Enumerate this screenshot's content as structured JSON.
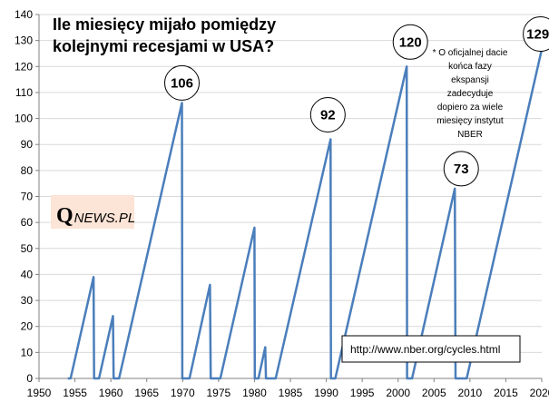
{
  "chart_data": {
    "type": "line",
    "title_lines": [
      "Ile miesięcy mijało pomiędzy",
      "kolejnymi recesjami w USA?"
    ],
    "xlabel": "",
    "ylabel": "",
    "xlim": [
      1950,
      2020
    ],
    "ylim": [
      0,
      140
    ],
    "x_ticks": [
      "1950",
      "1955",
      "1960",
      "1965",
      "1970",
      "1975",
      "1980",
      "1985",
      "1990",
      "1995",
      "2000",
      "2005",
      "2010",
      "2015",
      "2020"
    ],
    "y_ticks": [
      "0",
      "10",
      "20",
      "30",
      "40",
      "50",
      "60",
      "70",
      "80",
      "90",
      "100",
      "110",
      "120",
      "130",
      "140"
    ],
    "grid": "horizontal",
    "legend": "none",
    "series": [
      {
        "color": "#4a7ebb",
        "x": [
          1954.0,
          1954.4,
          1957.6,
          1957.67,
          1958.3,
          1958.35,
          1960.3,
          1960.38,
          1961.1,
          1961.15,
          1969.9,
          1969.95,
          1970.9,
          1970.95,
          1973.8,
          1973.9,
          1975.2,
          1975.25,
          1980.0,
          1980.05,
          1980.5,
          1980.55,
          1981.5,
          1981.6,
          1982.9,
          1982.95,
          1990.6,
          1990.65,
          1991.2,
          1991.25,
          2001.2,
          2001.25,
          2001.9,
          2001.95,
          2007.9,
          2008.0,
          2009.5,
          2009.55,
          2020.2
        ],
        "y": [
          0,
          0,
          39,
          0,
          0,
          0,
          24,
          0,
          0,
          0,
          106,
          0,
          0,
          0,
          36,
          0,
          0,
          0,
          58,
          0,
          0,
          0,
          12,
          0,
          0,
          0,
          92,
          0,
          0,
          0,
          120,
          0,
          0,
          0,
          73,
          0,
          0,
          0,
          129
        ]
      }
    ],
    "annotations": [
      {
        "label": "106",
        "x": 1969.9,
        "y": 106
      },
      {
        "label": "92",
        "x": 1990.6,
        "y": 92
      },
      {
        "label": "120",
        "x": 2001.2,
        "y": 120
      },
      {
        "label": "73",
        "x": 2007.9,
        "y": 73
      },
      {
        "label": "129*",
        "x": 2020.2,
        "y": 129
      }
    ]
  },
  "note": {
    "lines": [
      "* O oficjalnej dacie",
      "końca fazy",
      "ekspansji",
      "zadecyduje",
      "dopiero za wiele",
      "miesięcy instytut",
      "NBER"
    ]
  },
  "url_box": "http://www.nber.org/cycles.html",
  "logo": {
    "q": "Q",
    "rest": "NEWS.PL",
    "bg_color": "#fce4d6"
  },
  "colors": {
    "line": "#4a7ebb",
    "grid": "#d9d9d9",
    "axis": "#808080"
  }
}
